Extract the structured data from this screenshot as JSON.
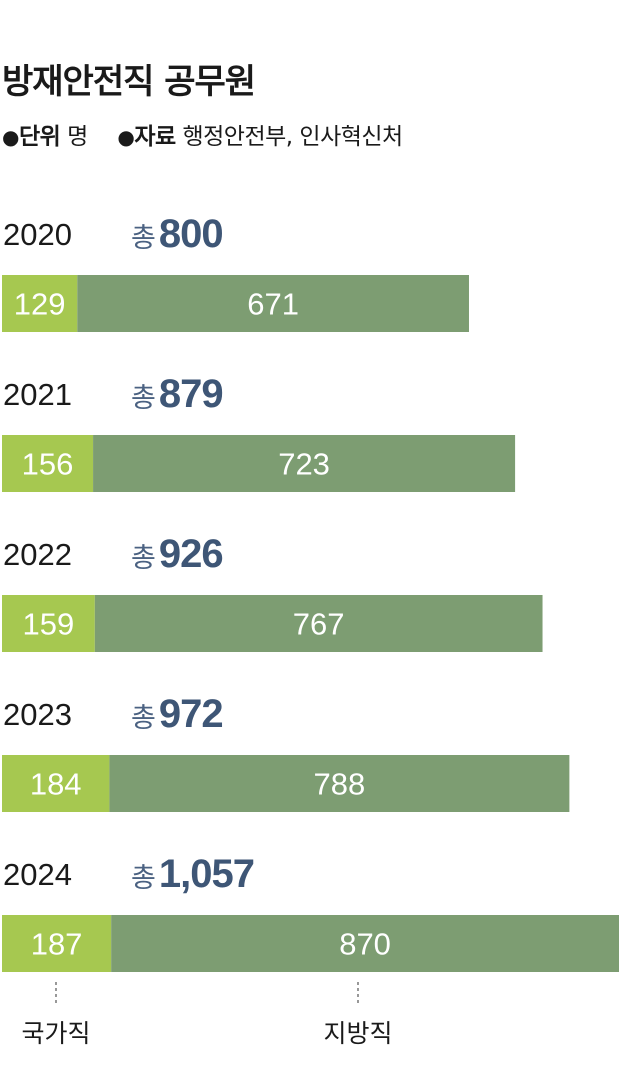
{
  "header": {
    "title": "방재안전직 공무원",
    "unit_bullet": "●",
    "unit_key": "단위",
    "unit_value": "명",
    "source_bullet": "●",
    "source_key": "자료",
    "source_value": "행정안전부, 인사혁신처"
  },
  "chart_data": {
    "type": "bar",
    "orientation": "horizontal",
    "stacked": true,
    "categories": [
      "2020",
      "2021",
      "2022",
      "2023",
      "2024"
    ],
    "series": [
      {
        "name": "국가직",
        "values": [
          129,
          156,
          159,
          184,
          187
        ],
        "color": "#a6c850"
      },
      {
        "name": "지방직",
        "values": [
          671,
          723,
          767,
          788,
          870
        ],
        "color": "#7d9d72"
      }
    ],
    "totals": [
      800,
      879,
      926,
      972,
      1057
    ],
    "total_prefix": "총",
    "total_labels": [
      "800",
      "879",
      "926",
      "972",
      "1,057"
    ],
    "xlim": [
      0,
      1057
    ],
    "grid": false,
    "legend": "bottom-labels"
  }
}
